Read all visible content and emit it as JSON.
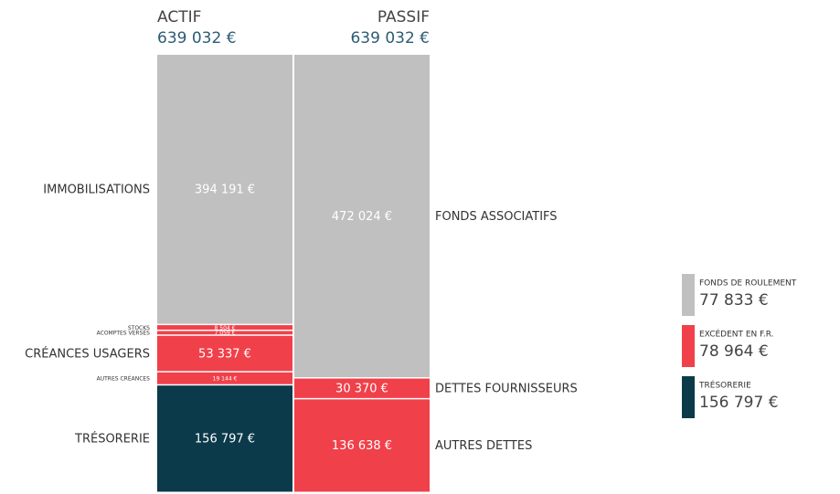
{
  "chart_data": {
    "type": "stacked-column",
    "columns": [
      {
        "name": "ACTIF",
        "total": 639032,
        "total_label": "639 032 €",
        "segments": [
          {
            "name": "IMMOBILISATIONS",
            "value": 394191,
            "value_label": "394 191 €",
            "color": "#c0c0c0"
          },
          {
            "name": "STOCKS",
            "value": 8504,
            "value_label": "8 504 €",
            "color": "#f0404a"
          },
          {
            "name": "ACOMPTES VERSÉS",
            "value": 7059,
            "value_label": "7 059 €",
            "color": "#f0404a"
          },
          {
            "name": "CRÉANCES USAGERS",
            "value": 53337,
            "value_label": "53 337 €",
            "color": "#f0404a"
          },
          {
            "name": "AUTRES CRÉANCES",
            "value": 19144,
            "value_label": "19 144 €",
            "color": "#f0404a"
          },
          {
            "name": "TRÉSORERIE",
            "value": 156797,
            "value_label": "156 797 €",
            "color": "#0b3a4a"
          }
        ]
      },
      {
        "name": "PASSIF",
        "total": 639032,
        "total_label": "639 032 €",
        "segments": [
          {
            "name": "FONDS ASSOCIATIFS",
            "value": 472024,
            "value_label": "472 024 €",
            "color": "#c0c0c0"
          },
          {
            "name": "DETTES FOURNISSEURS",
            "value": 30370,
            "value_label": "30 370 €",
            "color": "#f0404a"
          },
          {
            "name": "AUTRES DETTES",
            "value": 136638,
            "value_label": "136 638 €",
            "color": "#f0404a"
          }
        ]
      }
    ],
    "legend": [
      {
        "name": "FONDS DE ROULEMENT",
        "value": 77833,
        "value_label": "77 833 €",
        "color": "#c0c0c0"
      },
      {
        "name": "EXCÉDENT EN F.R.",
        "value": 78964,
        "value_label": "78 964 €",
        "color": "#f0404a"
      },
      {
        "name": "TRÉSORERIE",
        "value": 156797,
        "value_label": "156 797 €",
        "color": "#0b3a4a"
      }
    ]
  }
}
